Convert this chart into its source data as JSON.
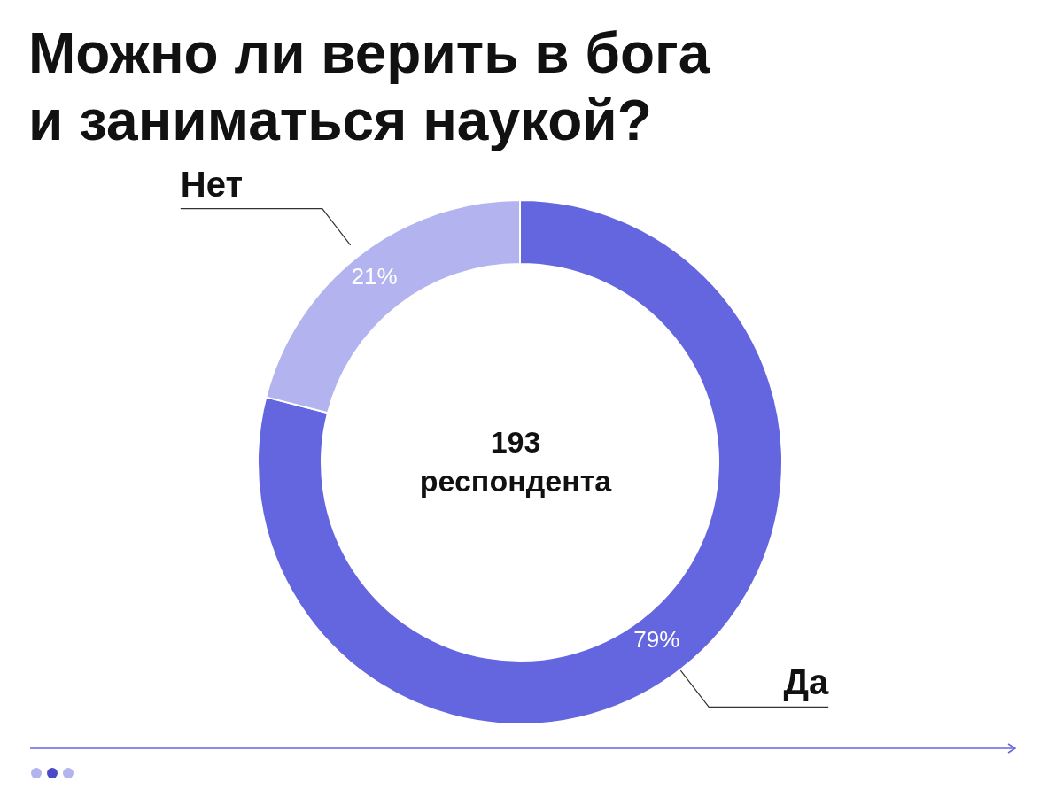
{
  "chart_data": {
    "type": "donut",
    "title": "Можно ли верить в бога\nи заниматься наукой?",
    "categories": [
      "Да",
      "Нет"
    ],
    "values": [
      79,
      21
    ],
    "value_labels": [
      "79%",
      "21%"
    ],
    "colors": [
      "#6466e0",
      "#b3b3f0"
    ],
    "annotations": [
      "193\nреспондента"
    ]
  }
}
